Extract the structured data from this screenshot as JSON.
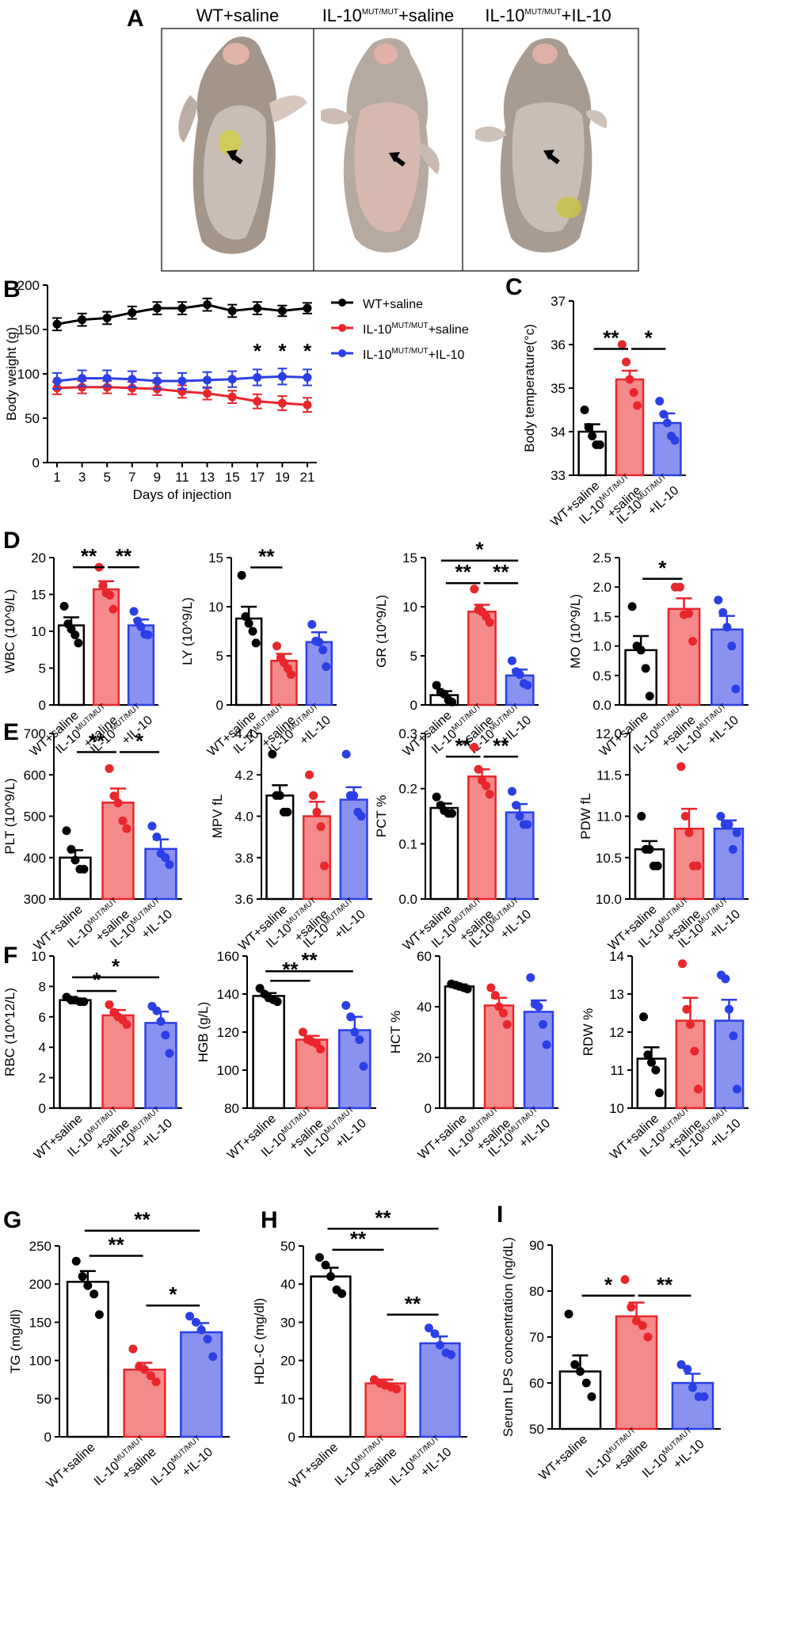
{
  "panel_letters": {
    "A": "A",
    "B": "B",
    "C": "C",
    "D": "D",
    "E": "E",
    "F": "F",
    "G": "G",
    "H": "H",
    "I": "I"
  },
  "group_text": {
    "wt": "WT+saline",
    "mut": "IL-10",
    "sup": "MUT/MUT",
    "saline_suffix": "+saline",
    "il10_suffix": "+IL-10"
  },
  "colors": {
    "wt": "#000000",
    "mut": "#e8262b",
    "mut_fill": "#f48a8a",
    "il10": "#2b3fe6",
    "il10_fill": "#8a92f0"
  },
  "photos": [
    {
      "title": "WT+saline",
      "icon": "mouse-photo-wt-saline"
    },
    {
      "title": "IL-10MUT/MUT+saline",
      "icon": "mouse-photo-mut-saline"
    },
    {
      "title": "IL-10MUT/MUT+IL-10",
      "icon": "mouse-photo-mut-il10"
    }
  ],
  "chart_data": [
    {
      "panel": "B",
      "type": "line",
      "title": "",
      "xlabel": "Days of injection",
      "ylabel": "Body weight (g)",
      "x": [
        1,
        3,
        5,
        7,
        9,
        11,
        13,
        15,
        17,
        19,
        21
      ],
      "ylim": [
        0,
        200
      ],
      "yticks": [
        0,
        50,
        100,
        150,
        200
      ],
      "series": [
        {
          "name": "WT+saline",
          "key": "wt",
          "values": [
            156,
            161,
            163,
            169,
            174,
            174,
            178,
            171,
            174,
            171,
            174
          ],
          "sem": [
            7,
            7,
            7,
            7,
            7,
            7,
            7,
            7,
            7,
            6,
            6
          ]
        },
        {
          "name": "IL-10MUT/MUT+saline",
          "key": "mut",
          "values": [
            84,
            85,
            85,
            84,
            83,
            80,
            78,
            74,
            69,
            67,
            65
          ],
          "sem": [
            7,
            7,
            7,
            7,
            7,
            7,
            7,
            7,
            8,
            8,
            8
          ]
        },
        {
          "name": "IL-10MUT/MUT+IL-10",
          "key": "il10",
          "values": [
            92,
            95,
            95,
            94,
            92,
            92,
            93,
            94,
            96,
            97,
            96
          ],
          "sem": [
            9,
            9,
            9,
            9,
            9,
            9,
            9,
            9,
            9,
            9,
            9
          ]
        }
      ],
      "annotations": [
        {
          "x": 17,
          "text": "*"
        },
        {
          "x": 19,
          "text": "*"
        },
        {
          "x": 21,
          "text": "*"
        }
      ]
    },
    {
      "panel": "C",
      "type": "bar",
      "ylabel": "Body temperature(°c)",
      "ylim": [
        33,
        37
      ],
      "yticks": [
        33,
        34,
        35,
        36,
        37
      ],
      "means": [
        34.0,
        35.2,
        34.2
      ],
      "sem": [
        0.17,
        0.2,
        0.22
      ],
      "points": [
        [
          34.5,
          34.1,
          33.9,
          33.7,
          33.7
        ],
        [
          36.0,
          35.6,
          35.2,
          34.9,
          34.6
        ],
        [
          34.7,
          34.4,
          34.2,
          33.9,
          33.8
        ]
      ],
      "sig": [
        {
          "a": 0,
          "b": 1,
          "text": "**",
          "y": 35.9
        },
        {
          "a": 1,
          "b": 2,
          "text": "*",
          "y": 35.9
        }
      ]
    },
    {
      "panel": "D1",
      "type": "bar",
      "ylabel": "WBC (10^9/L)",
      "ylim": [
        0,
        20
      ],
      "yticks": [
        0,
        5,
        10,
        15,
        20
      ],
      "means": [
        10.8,
        15.7,
        10.8
      ],
      "sem": [
        1.1,
        1.1,
        0.8
      ],
      "points": [
        [
          13.4,
          11.0,
          10.3,
          9.5,
          8.4
        ],
        [
          18.7,
          16.2,
          15.2,
          14.9,
          13.0
        ],
        [
          12.7,
          11.4,
          10.6,
          9.6,
          9.5
        ]
      ],
      "sig": [
        {
          "a": 0,
          "b": 1,
          "text": "**",
          "y": 18.7
        },
        {
          "a": 1,
          "b": 2,
          "text": "**",
          "y": 18.7
        }
      ]
    },
    {
      "panel": "D2",
      "type": "bar",
      "ylabel": "LY (10^9/L)",
      "ylim": [
        0,
        15
      ],
      "yticks": [
        0,
        5,
        10,
        15
      ],
      "means": [
        8.8,
        4.5,
        6.4
      ],
      "sem": [
        1.2,
        0.7,
        1.0
      ],
      "points": [
        [
          13.2,
          9.0,
          8.3,
          7.5,
          6.3
        ],
        [
          6.0,
          4.8,
          4.3,
          3.7,
          3.1
        ],
        [
          8.2,
          6.5,
          6.4,
          5.6,
          3.9
        ]
      ],
      "sig": [
        {
          "a": 0,
          "b": 1,
          "text": "**",
          "y": 14.0
        }
      ]
    },
    {
      "panel": "D3",
      "type": "bar",
      "ylabel": "GR (10^9/L)",
      "ylim": [
        0,
        15
      ],
      "yticks": [
        0,
        5,
        10,
        15
      ],
      "means": [
        1.0,
        9.5,
        3.0
      ],
      "sem": [
        0.4,
        0.7,
        0.6
      ],
      "points": [
        [
          2.0,
          1.3,
          1.1,
          0.5,
          0.3
        ],
        [
          11.8,
          9.7,
          9.5,
          9.0,
          8.4
        ],
        [
          4.5,
          3.4,
          3.1,
          2.2,
          2.0
        ]
      ],
      "sig": [
        {
          "a": 0,
          "b": 2,
          "text": "*",
          "y": 14.7
        },
        {
          "a": 0,
          "b": 1,
          "text": "**",
          "y": 12.4
        },
        {
          "a": 1,
          "b": 2,
          "text": "**",
          "y": 12.4
        }
      ]
    },
    {
      "panel": "D4",
      "type": "bar",
      "ylabel": "MO (10^9/L)",
      "ylim": [
        0,
        2.5
      ],
      "yticks": [
        0.0,
        0.5,
        1.0,
        1.5,
        2.0,
        2.5
      ],
      "means": [
        0.93,
        1.63,
        1.28
      ],
      "sem": [
        0.24,
        0.18,
        0.23
      ],
      "points": [
        [
          1.67,
          1.0,
          0.93,
          0.62,
          0.15
        ],
        [
          2.0,
          2.0,
          1.53,
          1.55,
          1.08
        ],
        [
          1.78,
          1.57,
          1.32,
          1.0,
          0.27
        ]
      ],
      "sig": [
        {
          "a": 0,
          "b": 1,
          "text": "*",
          "y": 2.14
        }
      ]
    },
    {
      "panel": "E1",
      "type": "bar",
      "ylabel": "PLT (10^9/L)",
      "ylim": [
        300,
        700
      ],
      "yticks": [
        300,
        400,
        500,
        600,
        700
      ],
      "means": [
        400,
        533,
        421
      ],
      "sem": [
        18,
        34,
        23
      ],
      "points": [
        [
          465,
          420,
          394,
          372,
          372
        ],
        [
          615,
          549,
          532,
          489,
          470
        ],
        [
          476,
          450,
          410,
          400,
          383
        ]
      ],
      "sig": [
        {
          "a": 0,
          "b": 1,
          "text": "**",
          "y": 655
        },
        {
          "a": 1,
          "b": 2,
          "text": "*",
          "y": 655
        }
      ]
    },
    {
      "panel": "E2",
      "type": "bar",
      "ylabel": "MPV fL",
      "ylim": [
        3.6,
        4.4
      ],
      "yticks": [
        3.6,
        3.8,
        4.0,
        4.2,
        4.4
      ],
      "means": [
        4.1,
        4.0,
        4.08
      ],
      "sem": [
        0.05,
        0.07,
        0.06
      ],
      "points": [
        [
          4.3,
          4.1,
          4.1,
          4.02,
          4.02
        ],
        [
          4.2,
          4.1,
          4.02,
          3.95,
          3.76
        ],
        [
          4.3,
          4.1,
          4.1,
          4.02,
          4.0
        ]
      ],
      "sig": []
    },
    {
      "panel": "E3",
      "type": "bar",
      "ylabel": "PCT %",
      "ylim": [
        0.0,
        0.3
      ],
      "yticks": [
        0.0,
        0.1,
        0.2,
        0.3
      ],
      "means": [
        0.165,
        0.222,
        0.157
      ],
      "sem": [
        0.008,
        0.013,
        0.015
      ],
      "points": [
        [
          0.185,
          0.17,
          0.16,
          0.155,
          0.155
        ],
        [
          0.275,
          0.235,
          0.215,
          0.205,
          0.19
        ],
        [
          0.195,
          0.17,
          0.15,
          0.135,
          0.135
        ]
      ],
      "sig": [
        {
          "a": 0,
          "b": 1,
          "text": "**",
          "y": 0.258
        },
        {
          "a": 1,
          "b": 2,
          "text": "**",
          "y": 0.258
        }
      ]
    },
    {
      "panel": "E4",
      "type": "bar",
      "ylabel": "PDW fL",
      "ylim": [
        10.0,
        12.0
      ],
      "yticks": [
        10.0,
        10.5,
        11.0,
        11.5,
        12.0
      ],
      "means": [
        10.6,
        10.85,
        10.85
      ],
      "sem": [
        0.1,
        0.24,
        0.1
      ],
      "points": [
        [
          11.0,
          10.6,
          10.6,
          10.4,
          10.4
        ],
        [
          11.6,
          11.0,
          10.8,
          10.4,
          10.4
        ],
        [
          11.0,
          10.9,
          10.9,
          10.6,
          10.8
        ]
      ],
      "sig": []
    },
    {
      "panel": "F1",
      "type": "bar",
      "ylabel": "RBC (10^12/L)",
      "ylim": [
        0,
        10
      ],
      "yticks": [
        0,
        2,
        4,
        6,
        8,
        10
      ],
      "means": [
        7.1,
        6.1,
        5.6
      ],
      "sem": [
        0.1,
        0.35,
        0.75
      ],
      "points": [
        [
          7.3,
          7.1,
          7.1,
          7.0,
          7.0
        ],
        [
          6.8,
          6.3,
          6.0,
          5.8,
          5.5
        ],
        [
          6.7,
          6.4,
          5.7,
          4.8,
          3.6
        ]
      ],
      "sig": [
        {
          "a": 0,
          "b": 2,
          "text": "*",
          "y": 8.6
        },
        {
          "a": 0,
          "b": 1,
          "text": "*",
          "y": 7.7
        }
      ]
    },
    {
      "panel": "F2",
      "type": "bar",
      "ylabel": "HGB (g/L)",
      "ylim": [
        80,
        160
      ],
      "yticks": [
        80,
        100,
        120,
        140,
        160
      ],
      "means": [
        139,
        116,
        121
      ],
      "sem": [
        1.5,
        2.0,
        7.0
      ],
      "points": [
        [
          143,
          140,
          138,
          137,
          136
        ],
        [
          120,
          116,
          115,
          114,
          111
        ],
        [
          134,
          128,
          120,
          116,
          102
        ]
      ],
      "sig": [
        {
          "a": 0,
          "b": 2,
          "text": "**",
          "y": 152
        },
        {
          "a": 0,
          "b": 1,
          "text": "**",
          "y": 147
        }
      ]
    },
    {
      "panel": "F3",
      "type": "bar",
      "ylabel": "HCT %",
      "ylim": [
        0,
        60
      ],
      "yticks": [
        0,
        20,
        40,
        60
      ],
      "means": [
        48,
        40.5,
        38
      ],
      "sem": [
        0.8,
        3.0,
        4.5
      ],
      "points": [
        [
          49,
          48.5,
          48,
          47.5,
          47
        ],
        [
          47.5,
          44.5,
          40,
          37.5,
          33
        ],
        [
          51.5,
          41,
          40,
          33,
          25
        ]
      ],
      "sig": []
    },
    {
      "panel": "F4",
      "type": "bar",
      "ylabel": "RDW %",
      "ylim": [
        10,
        14
      ],
      "yticks": [
        10,
        11,
        12,
        13,
        14
      ],
      "means": [
        11.3,
        12.3,
        12.3
      ],
      "sem": [
        0.3,
        0.6,
        0.55
      ],
      "points": [
        [
          12.4,
          11.4,
          11.2,
          11.0,
          10.4
        ],
        [
          13.8,
          12.6,
          12.2,
          11.5,
          10.5
        ],
        [
          13.5,
          13.4,
          12.6,
          11.9,
          10.5
        ]
      ],
      "sig": []
    },
    {
      "panel": "G",
      "type": "bar",
      "ylabel": "TG (mg/dl)",
      "ylim": [
        0,
        250
      ],
      "yticks": [
        0,
        50,
        100,
        150,
        200,
        250
      ],
      "means": [
        203,
        88,
        137
      ],
      "sem": [
        14,
        9,
        12
      ],
      "points": [
        [
          230,
          210,
          198,
          187,
          160
        ],
        [
          115,
          92,
          88,
          80,
          72
        ],
        [
          158,
          150,
          140,
          128,
          105
        ]
      ],
      "sig": [
        {
          "a": 0,
          "b": 2,
          "text": "**",
          "y": 270
        },
        {
          "a": 0,
          "b": 1,
          "text": "**",
          "y": 237
        },
        {
          "a": 1,
          "b": 2,
          "text": "*",
          "y": 172
        }
      ]
    },
    {
      "panel": "H",
      "type": "bar",
      "ylabel": "HDL-C (mg/dl)",
      "ylim": [
        0,
        50
      ],
      "yticks": [
        0,
        10,
        20,
        30,
        40,
        50
      ],
      "means": [
        42,
        14,
        24.5
      ],
      "sem": [
        2.3,
        1.0,
        1.8
      ],
      "points": [
        [
          47,
          45,
          42,
          38.5,
          37.5
        ],
        [
          15,
          14,
          13.5,
          13,
          12.5
        ],
        [
          28.5,
          27,
          24,
          22,
          21.5
        ]
      ],
      "sig": [
        {
          "a": 0,
          "b": 2,
          "text": "**",
          "y": 54.5
        },
        {
          "a": 0,
          "b": 1,
          "text": "**",
          "y": 49
        },
        {
          "a": 1,
          "b": 2,
          "text": "**",
          "y": 32
        }
      ]
    },
    {
      "panel": "I",
      "type": "bar",
      "ylabel": "Serum LPS concentration (ng/dL)",
      "ylim": [
        50,
        90
      ],
      "yticks": [
        50,
        60,
        70,
        80,
        90
      ],
      "means": [
        62.5,
        74.5,
        60
      ],
      "sem": [
        3.5,
        3.0,
        2.0
      ],
      "points": [
        [
          75,
          64,
          62.5,
          60,
          57
        ],
        [
          82.5,
          76.5,
          73.5,
          72.5,
          70
        ],
        [
          64,
          63,
          59,
          57,
          57
        ]
      ],
      "sig": [
        {
          "a": 0,
          "b": 1,
          "text": "*",
          "y": 79
        },
        {
          "a": 1,
          "b": 2,
          "text": "**",
          "y": 79
        }
      ]
    }
  ]
}
